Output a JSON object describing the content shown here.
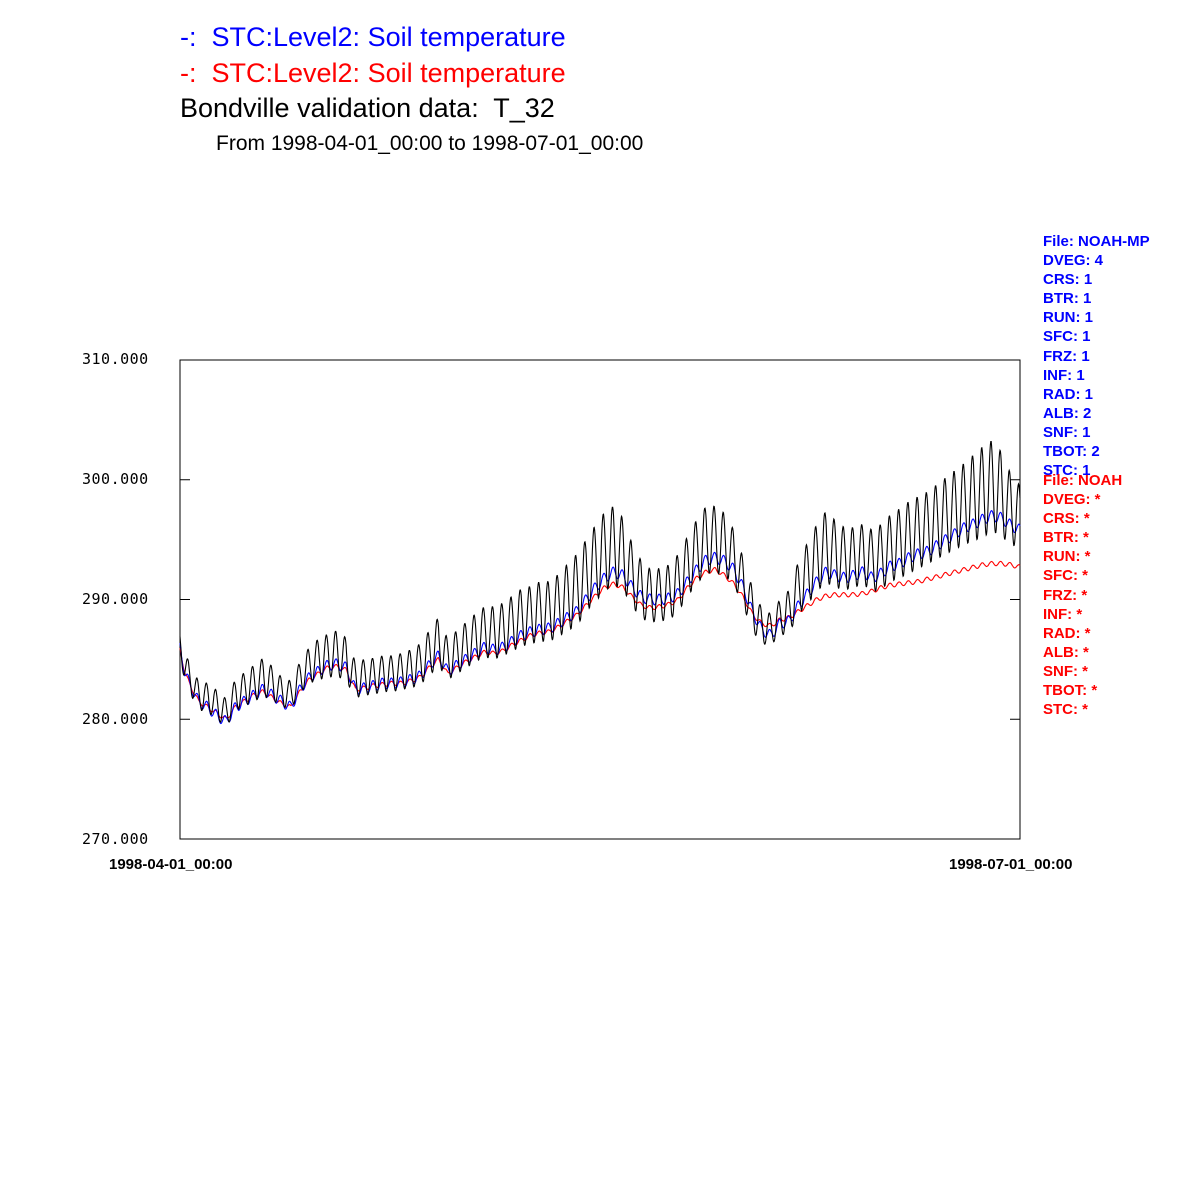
{
  "header": {
    "line1": "-:  STC:Level2: Soil temperature",
    "line2": "-:  STC:Level2: Soil temperature",
    "title": "Bondville validation data:  T_32",
    "subtitle": "From 1998-04-01_00:00 to 1998-07-01_00:00"
  },
  "meta_blue": {
    "color": "#0000ff",
    "lines": [
      "File: NOAH-MP",
      "DVEG: 4",
      "CRS: 1",
      "BTR: 1",
      "RUN: 1",
      "SFC: 1",
      "FRZ: 1",
      "INF: 1",
      "RAD: 1",
      "ALB: 2",
      "SNF: 1",
      "TBOT: 2",
      "STC: 1"
    ]
  },
  "meta_red": {
    "color": "#ff0000",
    "lines": [
      "File: NOAH",
      "DVEG: *",
      "CRS: *",
      "BTR: *",
      "RUN: *",
      "SFC: *",
      "FRZ: *",
      "INF: *",
      "RAD: *",
      "ALB: *",
      "SNF: *",
      "TBOT: *",
      "STC: *"
    ]
  },
  "chart_data": {
    "type": "line",
    "title": "Bondville validation data:  T_32",
    "subtitle": "From 1998-04-01_00:00 to 1998-07-01_00:00",
    "xlabel": "",
    "ylabel": "",
    "x_unit": "days since 1998-04-01_00:00",
    "xlim": [
      0,
      91
    ],
    "ylim": [
      270,
      310
    ],
    "x_tick_labels": [
      "1998-04-01_00:00",
      "1998-07-01_00:00"
    ],
    "y_tick_labels": [
      "270.000",
      "280.000",
      "290.000",
      "300.000",
      "310.000"
    ],
    "y_ticks": [
      270,
      280,
      290,
      300,
      310
    ],
    "grid": false,
    "legend": "top",
    "series": [
      {
        "name": "STC:Level2: Soil temperature",
        "color": "#0000ff",
        "x": [
          0,
          0.5,
          1,
          2,
          3,
          4,
          5,
          6,
          7,
          8,
          9,
          10,
          11,
          12,
          13,
          14,
          15,
          16,
          17,
          18,
          19,
          20,
          21,
          22,
          23,
          24,
          25,
          26,
          27,
          28,
          29,
          30,
          31,
          32,
          33,
          34,
          35,
          36,
          37,
          38,
          39,
          40,
          41,
          42,
          43,
          44,
          45,
          46,
          47,
          48,
          49,
          50,
          51,
          52,
          53,
          54,
          55,
          56,
          57,
          58,
          59,
          60,
          61,
          62,
          63,
          64,
          65,
          66,
          67,
          68,
          69,
          70,
          71,
          72,
          73,
          74,
          75,
          76,
          77,
          78,
          79,
          80,
          81,
          82,
          83,
          84,
          85,
          86,
          87,
          88,
          89,
          90,
          91
        ],
        "y": [
          286.0,
          284.0,
          283.0,
          281.5,
          281.0,
          280.3,
          279.8,
          281.0,
          281.5,
          282.0,
          282.5,
          282.0,
          281.5,
          281.0,
          282.5,
          283.5,
          284.0,
          284.5,
          284.6,
          284.3,
          282.5,
          282.6,
          282.8,
          283.0,
          283.0,
          283.1,
          283.3,
          283.6,
          284.5,
          285.3,
          284.0,
          284.5,
          285.0,
          285.5,
          286.0,
          285.8,
          286.0,
          286.5,
          287.0,
          287.3,
          287.5,
          287.6,
          288.0,
          288.5,
          289.0,
          290.0,
          291.0,
          291.8,
          292.3,
          292.0,
          291.0,
          290.2,
          290.0,
          290.0,
          290.1,
          290.5,
          291.5,
          292.5,
          293.3,
          293.5,
          293.2,
          292.5,
          291.0,
          289.0,
          287.5,
          287.0,
          288.0,
          288.2,
          289.5,
          290.5,
          291.5,
          292.3,
          292.0,
          291.8,
          292.0,
          292.3,
          291.8,
          292.2,
          292.8,
          293.0,
          293.5,
          293.8,
          294.0,
          294.5,
          295.0,
          295.5,
          296.0,
          296.3,
          296.7,
          297.0,
          296.8,
          296.2,
          295.8
        ]
      },
      {
        "name": "STC:Level2: Soil temperature",
        "color": "#ff0000",
        "x": [
          0,
          0.5,
          1,
          2,
          3,
          4,
          5,
          6,
          7,
          8,
          9,
          10,
          11,
          12,
          13,
          14,
          15,
          16,
          17,
          18,
          19,
          20,
          21,
          22,
          23,
          24,
          25,
          26,
          27,
          28,
          29,
          30,
          31,
          32,
          33,
          34,
          35,
          36,
          37,
          38,
          39,
          40,
          41,
          42,
          43,
          44,
          45,
          46,
          47,
          48,
          49,
          50,
          51,
          52,
          53,
          54,
          55,
          56,
          57,
          58,
          59,
          60,
          61,
          62,
          63,
          64,
          65,
          66,
          67,
          68,
          69,
          70,
          71,
          72,
          73,
          74,
          75,
          76,
          77,
          78,
          79,
          80,
          81,
          82,
          83,
          84,
          85,
          86,
          87,
          88,
          89,
          90,
          91
        ],
        "y": [
          285.8,
          284.0,
          283.0,
          281.5,
          281.0,
          280.5,
          280.0,
          281.0,
          281.5,
          282.0,
          282.3,
          281.8,
          281.3,
          281.0,
          282.3,
          283.3,
          283.8,
          284.3,
          284.4,
          284.1,
          282.5,
          282.6,
          282.8,
          282.9,
          283.0,
          283.0,
          283.2,
          283.5,
          284.3,
          285.0,
          283.8,
          284.3,
          284.8,
          285.2,
          285.6,
          285.5,
          285.7,
          286.2,
          286.6,
          287.0,
          287.2,
          287.3,
          287.7,
          288.2,
          288.7,
          289.5,
          290.3,
          291.0,
          291.3,
          291.0,
          290.2,
          289.5,
          289.3,
          289.4,
          289.6,
          290.0,
          291.0,
          291.8,
          292.3,
          292.5,
          292.0,
          291.3,
          290.2,
          288.8,
          288.0,
          287.8,
          288.3,
          288.5,
          289.0,
          289.5,
          290.0,
          290.3,
          290.4,
          290.4,
          290.4,
          290.5,
          290.7,
          291.0,
          291.2,
          291.3,
          291.4,
          291.5,
          291.7,
          291.9,
          292.1,
          292.3,
          292.5,
          292.7,
          292.9,
          293.0,
          293.0,
          292.9,
          292.7
        ]
      },
      {
        "name": "Bondville validation data:  T_32",
        "color": "#000000",
        "amplitude": [
          1.2,
          1.2,
          1.2,
          1.2,
          1.2,
          1.2,
          1.2,
          1.3,
          1.4,
          1.5,
          1.6,
          1.4,
          1.2,
          1.2,
          1.3,
          1.5,
          1.7,
          1.8,
          1.9,
          1.8,
          1.5,
          1.5,
          1.5,
          1.5,
          1.5,
          1.5,
          1.6,
          1.7,
          1.9,
          2.0,
          1.7,
          1.8,
          1.9,
          2.0,
          2.1,
          2.2,
          2.2,
          2.3,
          2.4,
          2.4,
          2.5,
          2.5,
          2.6,
          2.8,
          3.0,
          3.0,
          3.2,
          3.3,
          3.3,
          3.0,
          2.6,
          2.4,
          2.2,
          2.2,
          2.3,
          2.4,
          2.5,
          2.7,
          2.8,
          2.8,
          2.6,
          2.3,
          2.0,
          1.8,
          1.5,
          1.3,
          1.5,
          1.8,
          2.2,
          2.6,
          2.8,
          3.0,
          2.8,
          2.6,
          2.5,
          2.5,
          2.6,
          2.7,
          2.8,
          2.9,
          3.0,
          3.0,
          3.0,
          3.1,
          3.2,
          3.3,
          3.4,
          3.6,
          3.8,
          3.8,
          3.5,
          3.0,
          2.5
        ],
        "x": [
          0,
          0.5,
          1,
          2,
          3,
          4,
          5,
          6,
          7,
          8,
          9,
          10,
          11,
          12,
          13,
          14,
          15,
          16,
          17,
          18,
          19,
          20,
          21,
          22,
          23,
          24,
          25,
          26,
          27,
          28,
          29,
          30,
          31,
          32,
          33,
          34,
          35,
          36,
          37,
          38,
          39,
          40,
          41,
          42,
          43,
          44,
          45,
          46,
          47,
          48,
          49,
          50,
          51,
          52,
          53,
          54,
          55,
          56,
          57,
          58,
          59,
          60,
          61,
          62,
          63,
          64,
          65,
          66,
          67,
          68,
          69,
          70,
          71,
          72,
          73,
          74,
          75,
          76,
          77,
          78,
          79,
          80,
          81,
          82,
          83,
          84,
          85,
          86,
          87,
          88,
          89,
          90,
          91
        ],
        "y": [
          286.2,
          284.5,
          283.5,
          282.0,
          281.8,
          281.2,
          280.5,
          282.0,
          282.5,
          283.0,
          283.5,
          283.0,
          282.3,
          282.0,
          283.5,
          284.5,
          285.0,
          285.3,
          285.5,
          285.0,
          283.3,
          283.5,
          283.6,
          283.8,
          283.8,
          284.0,
          284.2,
          284.6,
          285.5,
          286.5,
          285.0,
          285.6,
          286.2,
          286.8,
          287.3,
          287.2,
          287.5,
          288.0,
          288.5,
          288.7,
          289.0,
          289.0,
          289.5,
          290.2,
          290.8,
          292.0,
          293.0,
          294.0,
          294.5,
          293.8,
          292.0,
          290.8,
          290.3,
          290.4,
          290.6,
          291.4,
          292.8,
          294.0,
          295.0,
          295.0,
          294.6,
          293.5,
          291.5,
          289.2,
          287.8,
          287.5,
          288.5,
          289.0,
          291.0,
          292.2,
          293.5,
          294.4,
          293.8,
          293.4,
          293.5,
          293.8,
          293.2,
          293.6,
          294.3,
          294.7,
          295.2,
          295.6,
          296.0,
          296.5,
          297.0,
          297.5,
          298.0,
          298.5,
          299.0,
          299.5,
          298.8,
          297.5,
          297.0
        ]
      }
    ]
  }
}
